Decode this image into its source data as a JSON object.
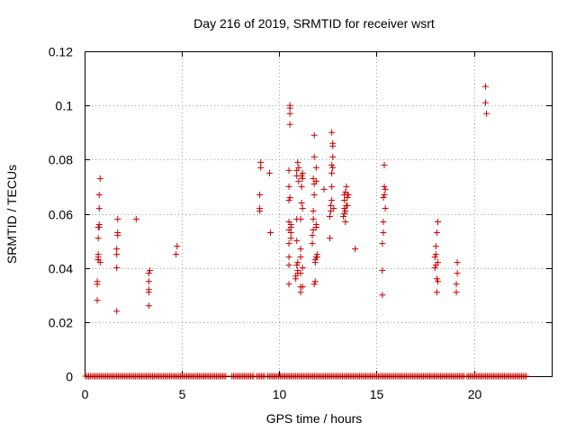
{
  "chart_data": {
    "type": "scatter",
    "title": "Day 216 of 2019, SRMTID for receiver wsrt",
    "xlabel": "GPS time / hours",
    "ylabel": "SRMTID / TECUs",
    "xlim": [
      0,
      24
    ],
    "ylim": [
      0,
      0.12
    ],
    "xticks": [
      "0",
      "5",
      "10",
      "15",
      "20"
    ],
    "yticks": [
      "0",
      "0.02",
      "0.04",
      "0.06",
      "0.08",
      "0.1",
      "0.12"
    ],
    "grid": true,
    "marker": "plus",
    "color": "#cc0000",
    "series": [
      {
        "x": [
          0.65,
          0.65,
          0.65,
          0.7,
          0.7,
          0.7,
          0.7,
          0.7,
          0.7,
          0.75,
          0.75,
          0.75,
          0.75,
          0.8,
          0.8,
          1.65,
          1.65,
          1.65,
          1.65,
          1.7,
          1.7,
          1.7,
          2.65,
          3.3,
          3.3,
          3.3,
          3.3,
          3.3,
          3.35,
          4.7,
          4.75,
          9.0,
          9.0,
          9.0,
          9.05,
          9.05,
          9.5,
          9.55,
          10.5,
          10.5,
          10.5,
          10.5,
          10.5,
          10.5,
          10.5,
          10.5,
          10.5,
          10.55,
          10.55,
          10.55,
          10.55,
          10.55,
          10.6,
          10.6,
          10.6,
          10.6,
          10.85,
          10.85,
          10.9,
          10.9,
          10.9,
          10.9,
          10.9,
          10.95,
          10.95,
          10.95,
          10.95,
          11.0,
          11.0,
          11.1,
          11.1,
          11.1,
          11.1,
          11.1,
          11.1,
          11.15,
          11.15,
          11.15,
          11.2,
          11.2,
          11.2,
          11.2,
          11.2,
          11.7,
          11.7,
          11.75,
          11.75,
          11.75,
          11.75,
          11.8,
          11.8,
          11.8,
          11.8,
          11.8,
          11.85,
          11.85,
          11.85,
          11.9,
          11.9,
          11.9,
          11.9,
          11.9,
          11.95,
          11.95,
          12.3,
          12.6,
          12.6,
          12.65,
          12.65,
          12.7,
          12.7,
          12.7,
          12.7,
          12.7,
          12.75,
          12.75,
          12.75,
          12.75,
          12.8,
          13.3,
          13.35,
          13.35,
          13.35,
          13.35,
          13.4,
          13.4,
          13.4,
          13.45,
          13.45,
          13.5,
          13.5,
          13.5,
          13.55,
          13.9,
          15.3,
          15.3,
          15.3,
          15.35,
          15.35,
          15.35,
          15.4,
          15.4,
          15.4,
          15.45,
          15.45,
          18.0,
          18.0,
          18.05,
          18.05,
          18.05,
          18.1,
          18.1,
          18.1,
          18.15,
          18.15,
          18.15,
          19.1,
          19.1,
          19.15,
          19.15,
          20.6,
          20.6,
          20.65
        ],
        "y": [
          0.028,
          0.035,
          0.034,
          0.043,
          0.043,
          0.044,
          0.045,
          0.051,
          0.055,
          0.055,
          0.056,
          0.062,
          0.067,
          0.073,
          0.042,
          0.024,
          0.04,
          0.045,
          0.047,
          0.052,
          0.053,
          0.058,
          0.058,
          0.026,
          0.031,
          0.032,
          0.035,
          0.038,
          0.039,
          0.045,
          0.048,
          0.061,
          0.062,
          0.067,
          0.077,
          0.079,
          0.075,
          0.053,
          0.034,
          0.041,
          0.044,
          0.049,
          0.054,
          0.057,
          0.065,
          0.07,
          0.076,
          0.093,
          0.097,
          0.099,
          0.1,
          0.066,
          0.051,
          0.053,
          0.055,
          0.056,
          0.036,
          0.037,
          0.041,
          0.05,
          0.058,
          0.074,
          0.076,
          0.038,
          0.039,
          0.042,
          0.079,
          0.077,
          0.072,
          0.031,
          0.033,
          0.038,
          0.044,
          0.047,
          0.058,
          0.064,
          0.07,
          0.074,
          0.033,
          0.04,
          0.062,
          0.073,
          0.075,
          0.049,
          0.052,
          0.054,
          0.058,
          0.061,
          0.073,
          0.067,
          0.071,
          0.081,
          0.089,
          0.034,
          0.035,
          0.042,
          0.043,
          0.044,
          0.055,
          0.056,
          0.072,
          0.077,
          0.044,
          0.045,
          0.069,
          0.051,
          0.059,
          0.061,
          0.063,
          0.065,
          0.07,
          0.075,
          0.078,
          0.09,
          0.077,
          0.081,
          0.085,
          0.086,
          0.062,
          0.059,
          0.06,
          0.062,
          0.065,
          0.067,
          0.057,
          0.061,
          0.068,
          0.063,
          0.07,
          0.063,
          0.066,
          0.067,
          0.067,
          0.047,
          0.03,
          0.039,
          0.049,
          0.053,
          0.057,
          0.066,
          0.067,
          0.07,
          0.078,
          0.062,
          0.069,
          0.04,
          0.044,
          0.041,
          0.045,
          0.048,
          0.031,
          0.036,
          0.053,
          0.057,
          0.042,
          0.035,
          0.031,
          0.034,
          0.038,
          0.042,
          0.101,
          0.107,
          0.097
        ]
      },
      {
        "x_range": [
          0.05,
          22.75
        ],
        "y": 0,
        "gaps": [
          [
            7.3,
            7.5
          ],
          [
            8.7,
            8.8
          ],
          [
            9.3,
            9.4
          ],
          [
            19.5,
            19.6
          ]
        ]
      }
    ]
  }
}
